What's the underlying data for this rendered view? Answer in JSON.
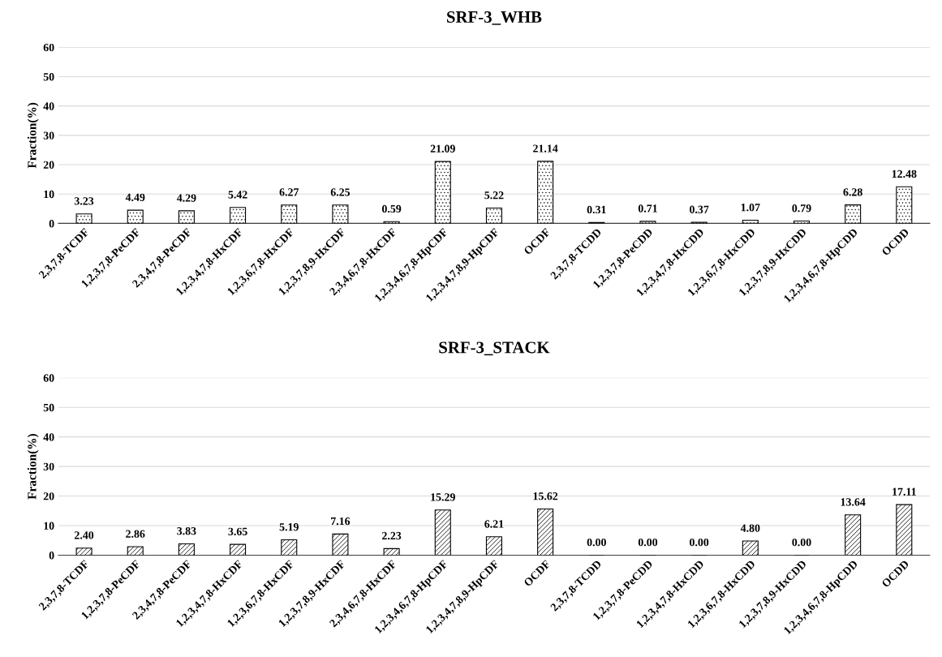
{
  "chart_data": [
    {
      "type": "bar",
      "title": "SRF-3_WHB",
      "ylabel": "Fraction(%)",
      "categories": [
        "2,3,7,8-TCDF",
        "1,2,3,7,8-PeCDF",
        "2,3,4,7,8-PeCDF",
        "1,2,3,4,7,8-HxCDF",
        "1,2,3,6,7,8-HxCDF",
        "1,2,3,7,8,9-HxCDF",
        "2,3,4,6,7,8-HxCDF",
        "1,2,3,4,6,7,8-HpCDF",
        "1,2,3,4,7,8,9-HpCDF",
        "OCDF",
        "2,3,7,8-TCDD",
        "1,2,3,7,8-PeCDD",
        "1,2,3,4,7,8-HxCDD",
        "1,2,3,6,7,8-HxCDD",
        "1,2,3,7,8,9-HxCDD",
        "1,2,3,4,6,7,8-HpCDD",
        "OCDD"
      ],
      "values": [
        3.23,
        4.49,
        4.29,
        5.42,
        6.27,
        6.25,
        0.59,
        21.09,
        5.22,
        21.14,
        0.31,
        0.71,
        0.37,
        1.07,
        0.79,
        6.28,
        12.48
      ],
      "value_labels": [
        "3.23",
        "4.49",
        "4.29",
        "5.42",
        "6.27",
        "6.25",
        "0.59",
        "21.09",
        "5.22",
        "21.14",
        "0.31",
        "0.71",
        "0.37",
        "1.07",
        "0.79",
        "6.28",
        "12.48"
      ],
      "color": "#000000",
      "ylim": [
        0,
        60
      ],
      "yticks": [
        0,
        10,
        20,
        30,
        40,
        50,
        60
      ],
      "grid": "y"
    },
    {
      "type": "bar",
      "title": "SRF-3_STACK",
      "ylabel": "Fraction(%)",
      "categories": [
        "2,3,7,8-TCDF",
        "1,2,3,7,8-PeCDF",
        "2,3,4,7,8-PeCDF",
        "1,2,3,4,7,8-HxCDF",
        "1,2,3,6,7,8-HxCDF",
        "1,2,3,7,8,9-HxCDF",
        "2,3,4,6,7,8-HxCDF",
        "1,2,3,4,6,7,8-HpCDF",
        "1,2,3,4,7,8,9-HpCDF",
        "OCDF",
        "2,3,7,8-TCDD",
        "1,2,3,7,8-PeCDD",
        "1,2,3,4,7,8-HxCDD",
        "1,2,3,6,7,8-HxCDD",
        "1,2,3,7,8,9-HxCDD",
        "1,2,3,4,6,7,8-HpCDD",
        "OCDD"
      ],
      "values": [
        2.4,
        2.86,
        3.83,
        3.65,
        5.19,
        7.16,
        2.23,
        15.29,
        6.21,
        15.62,
        0.0,
        0.0,
        0.0,
        4.8,
        0.0,
        13.64,
        17.11
      ],
      "value_labels": [
        "2.40",
        "2.86",
        "3.83",
        "3.65",
        "5.19",
        "7.16",
        "2.23",
        "15.29",
        "6.21",
        "15.62",
        "0.00",
        "0.00",
        "0.00",
        "4.80",
        "0.00",
        "13.64",
        "17.11"
      ],
      "color": "#000000",
      "ylim": [
        0,
        60
      ],
      "yticks": [
        0,
        10,
        20,
        30,
        40,
        50,
        60
      ],
      "grid": "y"
    }
  ]
}
